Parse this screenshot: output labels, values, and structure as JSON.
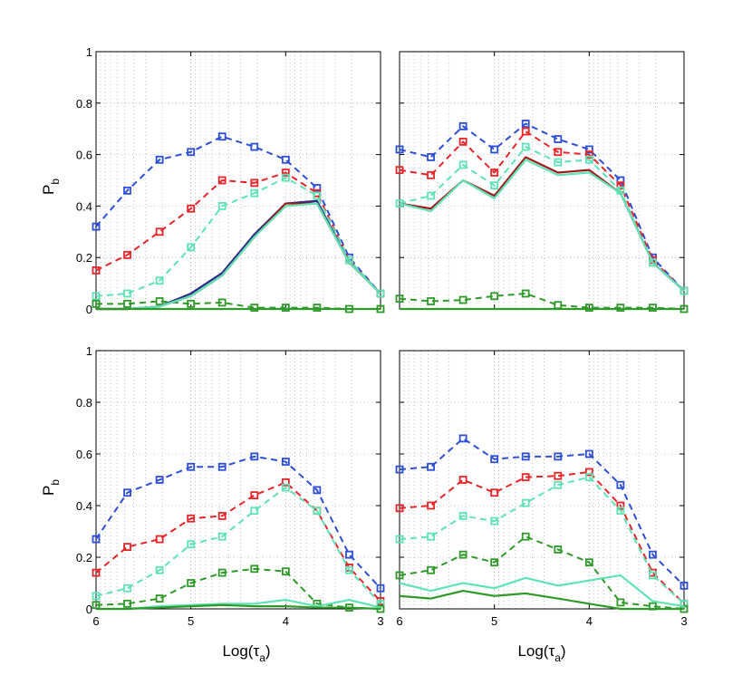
{
  "figure": {
    "ylabel_main": "P",
    "ylabel_sub": "b",
    "xlabel_main": "Log(τ",
    "xlabel_sub": "a",
    "xlabel_close": ")"
  },
  "colors": {
    "blue": "#2d4fd8",
    "red": "#e8262a",
    "cyan": "#5fe3b5",
    "green": "#2f9a2a",
    "navy": "#2a2a8a",
    "darkred": "#a01818"
  },
  "chart_data": [
    {
      "type": "line",
      "panel": "top-left",
      "x": [
        6,
        5.67,
        5.33,
        5,
        4.67,
        4.33,
        4,
        3.67,
        3.33,
        3
      ],
      "xlim": [
        6,
        3
      ],
      "ylim": [
        0,
        1
      ],
      "xticks": [
        "6",
        "5",
        "4",
        "3"
      ],
      "yticks": [
        "0",
        "0.2",
        "0.4",
        "0.6",
        "0.8",
        "1"
      ],
      "show_xticks": false,
      "show_ylabel": true,
      "show_xlabel": false,
      "grid": true,
      "series": [
        {
          "name": "blue-dashed",
          "color": "blue",
          "dashed": true,
          "markers": true,
          "values": [
            0.32,
            0.46,
            0.58,
            0.61,
            0.67,
            0.63,
            0.58,
            0.47,
            0.2,
            0.06
          ]
        },
        {
          "name": "red-dashed",
          "color": "red",
          "dashed": true,
          "markers": true,
          "values": [
            0.15,
            0.21,
            0.3,
            0.39,
            0.5,
            0.49,
            0.53,
            0.45,
            0.19,
            0.06
          ]
        },
        {
          "name": "cyan-dashed",
          "color": "cyan",
          "dashed": true,
          "markers": true,
          "values": [
            0.05,
            0.06,
            0.11,
            0.24,
            0.4,
            0.45,
            0.51,
            0.44,
            0.19,
            0.06
          ]
        },
        {
          "name": "green-dashed",
          "color": "green",
          "dashed": true,
          "markers": true,
          "values": [
            0.02,
            0.02,
            0.03,
            0.02,
            0.025,
            0.005,
            0.005,
            0.005,
            0.0,
            0.0
          ]
        },
        {
          "name": "navy-solid",
          "color": "navy",
          "dashed": false,
          "markers": false,
          "values": [
            0.0,
            0.0,
            0.01,
            0.06,
            0.14,
            0.29,
            0.41,
            0.42,
            0.18,
            0.06
          ]
        },
        {
          "name": "darkred-solid",
          "color": "darkred",
          "dashed": false,
          "markers": false,
          "values": [
            0.0,
            0.0,
            0.01,
            0.05,
            0.13,
            0.28,
            0.41,
            0.41,
            0.18,
            0.06
          ]
        },
        {
          "name": "cyan-solid",
          "color": "cyan",
          "dashed": false,
          "markers": false,
          "values": [
            0.0,
            0.0,
            0.01,
            0.05,
            0.13,
            0.28,
            0.4,
            0.41,
            0.18,
            0.06
          ]
        },
        {
          "name": "green-solid",
          "color": "green",
          "dashed": false,
          "markers": false,
          "values": [
            0.0,
            0.0,
            0.0,
            0.0,
            0.0,
            0.0,
            0.0,
            0.0,
            0.0,
            0.0
          ]
        }
      ]
    },
    {
      "type": "line",
      "panel": "top-right",
      "x": [
        6,
        5.67,
        5.33,
        5,
        4.67,
        4.33,
        4,
        3.67,
        3.33,
        3
      ],
      "xlim": [
        6,
        3
      ],
      "ylim": [
        0,
        1
      ],
      "xticks": [
        "6",
        "5",
        "4",
        "3"
      ],
      "yticks": [
        "0",
        "0.2",
        "0.4",
        "0.6",
        "0.8",
        "1"
      ],
      "show_xticks": false,
      "show_ylabel": false,
      "show_xlabel": false,
      "grid": true,
      "series": [
        {
          "name": "blue-dashed",
          "color": "blue",
          "dashed": true,
          "markers": true,
          "values": [
            0.62,
            0.59,
            0.71,
            0.62,
            0.72,
            0.66,
            0.62,
            0.5,
            0.2,
            0.07
          ]
        },
        {
          "name": "red-dashed",
          "color": "red",
          "dashed": true,
          "markers": true,
          "values": [
            0.54,
            0.52,
            0.65,
            0.53,
            0.69,
            0.61,
            0.6,
            0.48,
            0.19,
            0.07
          ]
        },
        {
          "name": "cyan-dashed",
          "color": "cyan",
          "dashed": true,
          "markers": true,
          "values": [
            0.41,
            0.44,
            0.56,
            0.48,
            0.63,
            0.57,
            0.58,
            0.46,
            0.18,
            0.07
          ]
        },
        {
          "name": "green-dashed",
          "color": "green",
          "dashed": true,
          "markers": true,
          "values": [
            0.04,
            0.03,
            0.035,
            0.05,
            0.06,
            0.015,
            0.005,
            0.005,
            0.005,
            0.0
          ]
        },
        {
          "name": "darkred-solid",
          "color": "darkred",
          "dashed": false,
          "markers": false,
          "values": [
            0.41,
            0.39,
            0.5,
            0.44,
            0.59,
            0.53,
            0.54,
            0.45,
            0.18,
            0.07
          ]
        },
        {
          "name": "cyan-solid",
          "color": "cyan",
          "dashed": false,
          "markers": false,
          "values": [
            0.41,
            0.38,
            0.5,
            0.43,
            0.58,
            0.52,
            0.53,
            0.45,
            0.18,
            0.07
          ]
        },
        {
          "name": "green-solid",
          "color": "green",
          "dashed": false,
          "markers": false,
          "values": [
            0.0,
            0.0,
            0.0,
            0.0,
            0.0,
            0.0,
            0.0,
            0.0,
            0.0,
            0.0
          ]
        }
      ]
    },
    {
      "type": "line",
      "panel": "bottom-left",
      "x": [
        6,
        5.67,
        5.33,
        5,
        4.67,
        4.33,
        4,
        3.67,
        3.33,
        3
      ],
      "xlim": [
        6,
        3
      ],
      "ylim": [
        0,
        1
      ],
      "xticks": [
        "6",
        "5",
        "4",
        "3"
      ],
      "yticks": [
        "0",
        "0.2",
        "0.4",
        "0.6",
        "0.8",
        "1"
      ],
      "show_xticks": true,
      "show_ylabel": true,
      "show_xlabel": true,
      "grid": true,
      "series": [
        {
          "name": "blue-dashed",
          "color": "blue",
          "dashed": true,
          "markers": true,
          "values": [
            0.27,
            0.45,
            0.5,
            0.55,
            0.55,
            0.59,
            0.57,
            0.46,
            0.21,
            0.08
          ]
        },
        {
          "name": "red-dashed",
          "color": "red",
          "dashed": true,
          "markers": true,
          "values": [
            0.14,
            0.24,
            0.27,
            0.35,
            0.36,
            0.44,
            0.49,
            0.38,
            0.16,
            0.03
          ]
        },
        {
          "name": "cyan-dashed",
          "color": "cyan",
          "dashed": true,
          "markers": true,
          "values": [
            0.05,
            0.08,
            0.15,
            0.25,
            0.28,
            0.38,
            0.47,
            0.38,
            0.15,
            0.02
          ]
        },
        {
          "name": "green-dashed",
          "color": "green",
          "dashed": true,
          "markers": true,
          "values": [
            0.015,
            0.02,
            0.04,
            0.1,
            0.14,
            0.155,
            0.145,
            0.02,
            0.005,
            0.0
          ]
        },
        {
          "name": "cyan-solid",
          "color": "cyan",
          "dashed": false,
          "markers": false,
          "values": [
            0.0,
            0.0,
            0.01,
            0.015,
            0.02,
            0.02,
            0.035,
            0.01,
            0.035,
            0.005
          ]
        },
        {
          "name": "green-solid",
          "color": "green",
          "dashed": false,
          "markers": false,
          "values": [
            0.0,
            0.0,
            0.005,
            0.01,
            0.015,
            0.01,
            0.01,
            0.005,
            0.005,
            0.0
          ]
        }
      ]
    },
    {
      "type": "line",
      "panel": "bottom-right",
      "x": [
        6,
        5.67,
        5.33,
        5,
        4.67,
        4.33,
        4,
        3.67,
        3.33,
        3
      ],
      "xlim": [
        6,
        3
      ],
      "ylim": [
        0,
        1
      ],
      "xticks": [
        "6",
        "5",
        "4",
        "3"
      ],
      "yticks": [
        "0",
        "0.2",
        "0.4",
        "0.6",
        "0.8",
        "1"
      ],
      "show_xticks": true,
      "show_ylabel": false,
      "show_xlabel": true,
      "grid": true,
      "series": [
        {
          "name": "blue-dashed",
          "color": "blue",
          "dashed": true,
          "markers": true,
          "values": [
            0.54,
            0.55,
            0.66,
            0.58,
            0.59,
            0.59,
            0.6,
            0.48,
            0.21,
            0.09
          ]
        },
        {
          "name": "red-dashed",
          "color": "red",
          "dashed": true,
          "markers": true,
          "values": [
            0.39,
            0.4,
            0.5,
            0.45,
            0.51,
            0.515,
            0.53,
            0.4,
            0.14,
            0.02
          ]
        },
        {
          "name": "cyan-dashed",
          "color": "cyan",
          "dashed": true,
          "markers": true,
          "values": [
            0.27,
            0.28,
            0.36,
            0.34,
            0.41,
            0.48,
            0.51,
            0.38,
            0.13,
            0.02
          ]
        },
        {
          "name": "green-dashed",
          "color": "green",
          "dashed": true,
          "markers": true,
          "values": [
            0.13,
            0.15,
            0.21,
            0.18,
            0.28,
            0.23,
            0.18,
            0.025,
            0.01,
            0.0
          ]
        },
        {
          "name": "cyan-solid",
          "color": "cyan",
          "dashed": false,
          "markers": false,
          "values": [
            0.1,
            0.07,
            0.1,
            0.08,
            0.12,
            0.09,
            0.11,
            0.13,
            0.03,
            0.01
          ]
        },
        {
          "name": "green-solid",
          "color": "green",
          "dashed": false,
          "markers": false,
          "values": [
            0.05,
            0.04,
            0.07,
            0.05,
            0.06,
            0.04,
            0.02,
            0.0,
            0.0,
            0.0
          ]
        }
      ]
    }
  ]
}
